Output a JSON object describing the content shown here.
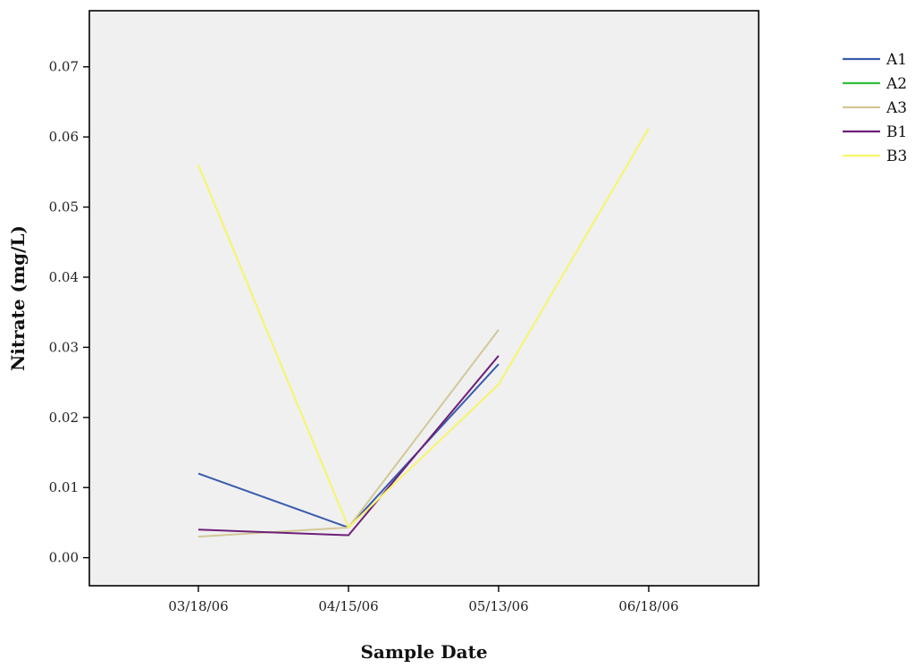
{
  "chart_data": {
    "type": "line",
    "title": "",
    "xlabel": "Sample Date",
    "ylabel": "Nitrate (mg/L)",
    "categories": [
      "03/18/06",
      "04/15/06",
      "05/13/06",
      "06/18/06"
    ],
    "yticks": [
      "0.00",
      "0.01",
      "0.02",
      "0.03",
      "0.04",
      "0.05",
      "0.06",
      "0.07"
    ],
    "ylim": [
      -0.004,
      0.078
    ],
    "grid": false,
    "legend_position": "right",
    "plot_background": "#f0f0f0",
    "series": [
      {
        "name": "A1",
        "color": "#3a5bad",
        "values": [
          0.012,
          0.0043,
          0.0276,
          null
        ]
      },
      {
        "name": "A2",
        "color": "#2fbf3a",
        "values": [
          null,
          null,
          null,
          null
        ]
      },
      {
        "name": "A3",
        "color": "#d2c896",
        "values": [
          0.003,
          0.0043,
          0.0325,
          null
        ]
      },
      {
        "name": "B1",
        "color": "#6e1f78",
        "values": [
          0.004,
          0.0032,
          0.0288,
          null
        ]
      },
      {
        "name": "B3",
        "color": "#f7f56a",
        "values": [
          0.056,
          0.0043,
          0.0247,
          0.0612
        ]
      }
    ]
  }
}
